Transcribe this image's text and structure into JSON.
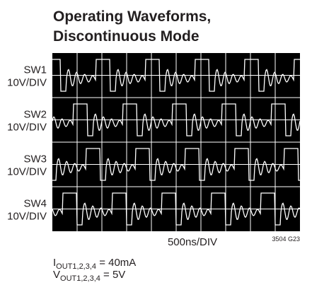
{
  "header": {
    "title_lines": [
      "Operating Waveforms,",
      "Discontinuous Mode"
    ]
  },
  "channels": [
    {
      "name": "SW1",
      "scale": "10V/DIV"
    },
    {
      "name": "SW2",
      "scale": "10V/DIV"
    },
    {
      "name": "SW3",
      "scale": "10V/DIV"
    },
    {
      "name": "SW4",
      "scale": "10V/DIV"
    }
  ],
  "timebase": "500ns/DIV",
  "figure_id": "3504 G23",
  "conditions": [
    {
      "symbol": "I",
      "subscript": "OUT1,2,3,4",
      "value": " = 40mA"
    },
    {
      "symbol": "V",
      "subscript": "OUT1,2,3,4",
      "value": " = 5V"
    }
  ]
}
